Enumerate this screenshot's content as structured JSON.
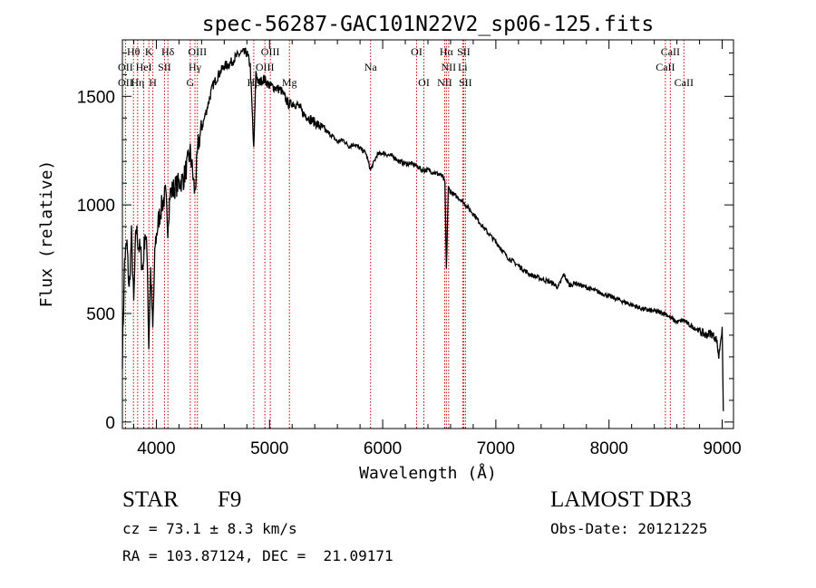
{
  "chart_data": {
    "type": "line",
    "title": "spec-56287-GAC101N22V2_sp06-125.fits",
    "xlabel": "Wavelength (Å)",
    "ylabel": "Flux (relative)",
    "xlim": [
      3700,
      9100
    ],
    "ylim": [
      -30,
      1760
    ],
    "xticks": [
      4000,
      5000,
      6000,
      7000,
      8000,
      9000
    ],
    "yticks": [
      0,
      500,
      1000,
      1500
    ],
    "x": [
      3700,
      3720,
      3740,
      3760,
      3780,
      3800,
      3820,
      3840,
      3860,
      3880,
      3900,
      3920,
      3933,
      3950,
      3968,
      3990,
      4020,
      4050,
      4080,
      4101,
      4120,
      4160,
      4200,
      4240,
      4280,
      4300,
      4320,
      4340,
      4370,
      4400,
      4450,
      4500,
      4550,
      4600,
      4650,
      4700,
      4750,
      4800,
      4830,
      4861,
      4880,
      4900,
      4950,
      5000,
      5050,
      5100,
      5150,
      5175,
      5200,
      5250,
      5300,
      5350,
      5400,
      5450,
      5500,
      5550,
      5600,
      5650,
      5700,
      5750,
      5800,
      5850,
      5893,
      5950,
      6000,
      6050,
      6100,
      6150,
      6200,
      6250,
      6300,
      6350,
      6400,
      6450,
      6500,
      6530,
      6550,
      6563,
      6580,
      6600,
      6650,
      6700,
      6750,
      6800,
      6900,
      7000,
      7100,
      7200,
      7300,
      7400,
      7500,
      7550,
      7600,
      7650,
      7700,
      7800,
      7900,
      8000,
      8100,
      8200,
      8300,
      8400,
      8500,
      8542,
      8600,
      8662,
      8700,
      8800,
      8850,
      8900,
      8950,
      8970,
      8990,
      9000,
      9010
    ],
    "y": [
      300,
      750,
      820,
      600,
      860,
      540,
      900,
      820,
      780,
      700,
      880,
      760,
      350,
      700,
      420,
      820,
      930,
      1000,
      1050,
      900,
      1050,
      1080,
      1100,
      1120,
      1200,
      1240,
      1150,
      1050,
      1280,
      1350,
      1450,
      1550,
      1600,
      1640,
      1650,
      1680,
      1700,
      1700,
      1640,
      1250,
      1620,
      1560,
      1580,
      1550,
      1540,
      1530,
      1480,
      1460,
      1470,
      1460,
      1420,
      1400,
      1380,
      1360,
      1340,
      1320,
      1290,
      1300,
      1270,
      1280,
      1260,
      1240,
      1160,
      1230,
      1240,
      1230,
      1220,
      1200,
      1190,
      1190,
      1180,
      1160,
      1160,
      1150,
      1140,
      1130,
      1100,
      700,
      1080,
      1060,
      1040,
      1020,
      990,
      960,
      890,
      830,
      760,
      720,
      680,
      660,
      640,
      620,
      680,
      630,
      640,
      620,
      600,
      580,
      560,
      540,
      520,
      510,
      500,
      480,
      460,
      470,
      450,
      420,
      400,
      410,
      380,
      300,
      400,
      420,
      50
    ],
    "reference_lines": {
      "wavelengths": [
        3727,
        3798,
        3835,
        3889,
        3934,
        3969,
        4072,
        4102,
        4300,
        4341,
        4363,
        4861,
        4959,
        5007,
        5176,
        5893,
        6300,
        6364,
        6548,
        6563,
        6583,
        6707,
        6716,
        6731,
        8498,
        8542,
        8662
      ],
      "labels": [
        {
          "text": "Hθ",
          "w": 3798,
          "row": 1
        },
        {
          "text": "K",
          "w": 3934,
          "row": 1
        },
        {
          "text": "Hδ",
          "w": 4102,
          "row": 1
        },
        {
          "text": "OIII",
          "w": 4363,
          "row": 1
        },
        {
          "text": "OIII",
          "w": 5007,
          "row": 1
        },
        {
          "text": "OI",
          "w": 6300,
          "row": 1
        },
        {
          "text": "Hα",
          "w": 6563,
          "row": 1
        },
        {
          "text": "SII",
          "w": 6716,
          "row": 1
        },
        {
          "text": "CaII",
          "w": 8542,
          "row": 1
        },
        {
          "text": "OII",
          "w": 3727,
          "row": 2
        },
        {
          "text": "HeI",
          "w": 3889,
          "row": 2
        },
        {
          "text": "SII",
          "w": 4072,
          "row": 2
        },
        {
          "text": "Hγ",
          "w": 4341,
          "row": 2
        },
        {
          "text": "OIII",
          "w": 4959,
          "row": 2
        },
        {
          "text": "Na",
          "w": 5893,
          "row": 2
        },
        {
          "text": "NII",
          "w": 6583,
          "row": 2
        },
        {
          "text": "Li",
          "w": 6707,
          "row": 2
        },
        {
          "text": "CaII",
          "w": 8498,
          "row": 2
        },
        {
          "text": "OII",
          "w": 3727,
          "row": 3
        },
        {
          "text": "Hη",
          "w": 3835,
          "row": 3
        },
        {
          "text": "H",
          "w": 3969,
          "row": 3
        },
        {
          "text": "G",
          "w": 4300,
          "row": 3
        },
        {
          "text": "Hβ",
          "w": 4861,
          "row": 3
        },
        {
          "text": "Mg",
          "w": 5176,
          "row": 3
        },
        {
          "text": "OI",
          "w": 6364,
          "row": 3
        },
        {
          "text": "NII",
          "w": 6548,
          "row": 3
        },
        {
          "text": "SII",
          "w": 6731,
          "row": 3
        },
        {
          "text": "CaII",
          "w": 8662,
          "row": 3
        }
      ]
    }
  },
  "info": {
    "object_class": "STAR",
    "subclass": "F9",
    "survey": "LAMOST DR3",
    "redshift": "cz = 73.1 ± 8.3 km/s",
    "obs_date": "Obs-Date: 20121225",
    "coords": "RA = 103.87124, DEC =  21.09171"
  }
}
